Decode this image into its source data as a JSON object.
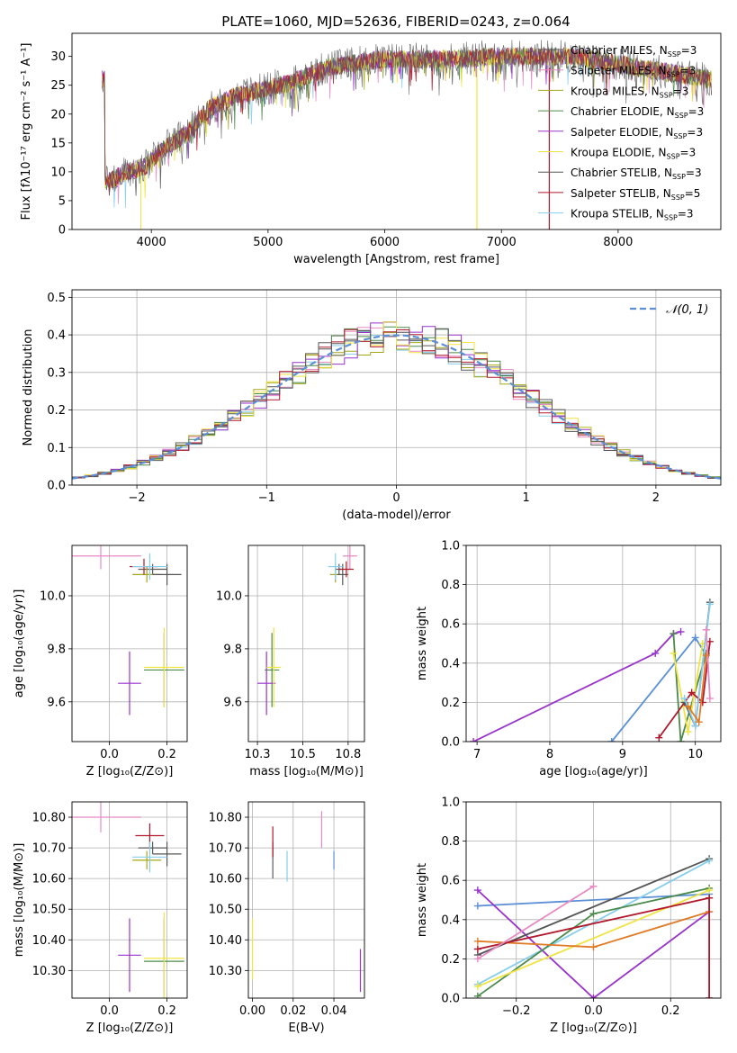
{
  "title": "PLATE=1060, MJD=52636, FIBERID=0243, z=0.064",
  "models": [
    {
      "label": "Chabrier MILES, N",
      "sub": "SSP",
      "tail": "=3",
      "color": "#5b5b5b"
    },
    {
      "label": "Salpeter MILES, N",
      "sub": "SSP",
      "tail": "=3",
      "color": "#e78ac3"
    },
    {
      "label": "Kroupa MILES, N",
      "sub": "SSP",
      "tail": "=3",
      "color": "#a6a61a"
    },
    {
      "label": "Chabrier ELODIE, N",
      "sub": "SSP",
      "tail": "=3",
      "color": "#4c8a4c"
    },
    {
      "label": "Salpeter ELODIE, N",
      "sub": "SSP",
      "tail": "=3",
      "color": "#9932cc"
    },
    {
      "label": "Kroupa ELODIE, N",
      "sub": "SSP",
      "tail": "=3",
      "color": "#f0e442"
    },
    {
      "label": "Chabrier STELIB, N",
      "sub": "SSP",
      "tail": "=3",
      "color": "#555555"
    },
    {
      "label": "Salpeter STELIB, N",
      "sub": "SSP",
      "tail": "=5",
      "color": "#b2182b"
    },
    {
      "label": "Kroupa STELIB, N",
      "sub": "SSP",
      "tail": "=3",
      "color": "#87ceeb"
    }
  ],
  "chart_data": [
    {
      "type": "line",
      "id": "spectrum",
      "xlabel": "wavelength [Angstrom, rest frame]",
      "ylabel": "Flux [fλ10⁻¹⁷ erg cm⁻² s⁻¹ A⁻¹]",
      "xlim": [
        3320,
        8880
      ],
      "ylim": [
        0,
        34
      ],
      "xticks": [
        4000,
        5000,
        6000,
        7000,
        8000
      ],
      "yticks": [
        0,
        5,
        10,
        15,
        20,
        25,
        30
      ],
      "continuum": {
        "x": [
          3600,
          3800,
          3950,
          4100,
          4300,
          4500,
          4700,
          5000,
          5200,
          5500,
          5800,
          6000,
          6300,
          6600,
          7000,
          7300,
          7600,
          7900,
          8200,
          8500,
          8800
        ],
        "y": [
          8,
          10,
          11,
          14,
          16.5,
          21,
          23,
          24.5,
          25.5,
          28,
          29,
          29.5,
          29.5,
          29.5,
          30,
          30,
          30,
          29,
          28,
          27,
          26
        ]
      },
      "drop_lines": [
        {
          "x": 6790,
          "model": 5
        },
        {
          "x": 7410,
          "model": 7
        }
      ]
    },
    {
      "type": "histogram",
      "id": "residuals",
      "xlabel": "(data-model)/error",
      "ylabel": "Normed distribution",
      "xlim": [
        -2.5,
        2.5
      ],
      "ylim": [
        0,
        0.52
      ],
      "xticks": [
        -2,
        -1,
        0,
        1,
        2
      ],
      "yticks": [
        0.0,
        0.1,
        0.2,
        0.3,
        0.4,
        0.5
      ],
      "reference": {
        "name": "𝒩(0, 1)",
        "color": "#5b8fd6"
      },
      "bin_width": 0.1
    },
    {
      "type": "errorbar",
      "id": "z-age",
      "xlabel": "Z [log₁₀(Z/Z⊙)]",
      "ylabel": "age  [log₁₀(age/yr)]",
      "xlim": [
        -0.13,
        0.27
      ],
      "ylim": [
        9.45,
        10.19
      ],
      "xticks": [
        0.0,
        0.2
      ],
      "yticks": [
        9.6,
        9.8,
        10.0
      ],
      "points": [
        {
          "m": 0,
          "x": 0.15,
          "y": 10.1,
          "xe": 0.05,
          "ye": 0.02
        },
        {
          "m": 1,
          "x": -0.03,
          "y": 10.15,
          "xe": 0.14,
          "ye": 0.05
        },
        {
          "m": 2,
          "x": 0.13,
          "y": 10.08,
          "xe": 0.05,
          "ye": 0.03
        },
        {
          "m": 3,
          "x": 0.19,
          "y": 9.72,
          "xe": 0.07,
          "ye": 0.14
        },
        {
          "m": 4,
          "x": 0.07,
          "y": 9.67,
          "xe": 0.04,
          "ye": 0.12
        },
        {
          "m": 5,
          "x": 0.19,
          "y": 9.73,
          "xe": 0.07,
          "ye": 0.15
        },
        {
          "m": 6,
          "x": 0.2,
          "y": 10.08,
          "xe": 0.05,
          "ye": 0.04
        },
        {
          "m": 7,
          "x": 0.12,
          "y": 10.11,
          "xe": 0.05,
          "ye": 0.03
        },
        {
          "m": 8,
          "x": 0.14,
          "y": 10.11,
          "xe": 0.06,
          "ye": 0.05
        }
      ]
    },
    {
      "type": "errorbar",
      "id": "mass-age",
      "xlabel": "mass [log₁₀(M/M⊙)]",
      "ylabel": "",
      "xlim": [
        10.2,
        10.84
      ],
      "ylim": [
        9.45,
        10.19
      ],
      "xticks": [
        10.25,
        10.5,
        10.75
      ],
      "yticks": [
        9.6,
        9.8,
        10.0
      ],
      "points": [
        {
          "m": 0,
          "x": 10.7,
          "y": 10.1,
          "xe": 0.02,
          "ye": 0.02
        },
        {
          "m": 1,
          "x": 10.76,
          "y": 10.15,
          "xe": 0.04,
          "ye": 0.05
        },
        {
          "m": 2,
          "x": 10.68,
          "y": 10.08,
          "xe": 0.03,
          "ye": 0.03
        },
        {
          "m": 3,
          "x": 10.33,
          "y": 9.72,
          "xe": 0.04,
          "ye": 0.14
        },
        {
          "m": 4,
          "x": 10.3,
          "y": 9.67,
          "xe": 0.05,
          "ye": 0.12
        },
        {
          "m": 5,
          "x": 10.34,
          "y": 9.73,
          "xe": 0.04,
          "ye": 0.15
        },
        {
          "m": 6,
          "x": 10.72,
          "y": 10.08,
          "xe": 0.03,
          "ye": 0.04
        },
        {
          "m": 7,
          "x": 10.74,
          "y": 10.1,
          "xe": 0.04,
          "ye": 0.03
        },
        {
          "m": 8,
          "x": 10.68,
          "y": 10.11,
          "xe": 0.04,
          "ye": 0.05
        }
      ]
    },
    {
      "type": "line",
      "id": "age-weight",
      "xlabel": "age  [log₁₀(age/yr)]",
      "ylabel": "mass weight",
      "xlim": [
        6.85,
        10.35
      ],
      "ylim": [
        0,
        1.0
      ],
      "xticks": [
        7,
        8,
        9,
        10
      ],
      "yticks": [
        0.0,
        0.2,
        0.4,
        0.6,
        0.8,
        1.0
      ],
      "series": [
        {
          "m": 9,
          "x": [
            8.85,
            10.0,
            10.15
          ],
          "y": [
            0.0,
            0.53,
            0.44
          ]
        },
        {
          "m": 4,
          "x": [
            6.95,
            9.45,
            9.7,
            9.8
          ],
          "y": [
            0.0,
            0.45,
            0.55,
            0.56
          ]
        },
        {
          "m": 3,
          "x": [
            9.7,
            9.8,
            10.15
          ],
          "y": [
            0.55,
            0.0,
            0.45
          ]
        },
        {
          "m": 5,
          "x": [
            9.7,
            9.9,
            10.1
          ],
          "y": [
            0.45,
            0.05,
            0.5
          ]
        },
        {
          "m": 7,
          "x": [
            9.5,
            9.95,
            10.1,
            10.2
          ],
          "y": [
            0.02,
            0.25,
            0.2,
            0.51
          ]
        },
        {
          "m": 6,
          "x": [
            9.85,
            10.0,
            10.2
          ],
          "y": [
            0.2,
            0.08,
            0.71
          ]
        },
        {
          "m": 8,
          "x": [
            9.85,
            10.0,
            10.2
          ],
          "y": [
            0.22,
            0.08,
            0.7
          ]
        },
        {
          "m": 1,
          "x": [
            10.15,
            10.2
          ],
          "y": [
            0.57,
            0.22
          ]
        },
        {
          "m": 10,
          "x": [
            9.9,
            10.05,
            10.15
          ],
          "y": [
            0.18,
            0.1,
            0.44
          ]
        }
      ]
    },
    {
      "type": "errorbar",
      "id": "z-mass",
      "xlabel": "Z [log₁₀(Z/Z⊙)]",
      "ylabel": "mass [log₁₀(M/M⊙)]",
      "xlim": [
        -0.13,
        0.27
      ],
      "ylim": [
        10.21,
        10.85
      ],
      "xticks": [
        0.0,
        0.2
      ],
      "yticks": [
        10.3,
        10.4,
        10.5,
        10.6,
        10.7,
        10.8
      ],
      "points": [
        {
          "m": 0,
          "x": 0.15,
          "y": 10.7,
          "xe": 0.05,
          "ye": 0.02
        },
        {
          "m": 1,
          "x": -0.03,
          "y": 10.8,
          "xe": 0.14,
          "ye": 0.05
        },
        {
          "m": 2,
          "x": 0.13,
          "y": 10.66,
          "xe": 0.05,
          "ye": 0.03
        },
        {
          "m": 3,
          "x": 0.19,
          "y": 10.33,
          "xe": 0.07,
          "ye": 0.14
        },
        {
          "m": 4,
          "x": 0.07,
          "y": 10.35,
          "xe": 0.04,
          "ye": 0.12
        },
        {
          "m": 5,
          "x": 0.19,
          "y": 10.34,
          "xe": 0.07,
          "ye": 0.15
        },
        {
          "m": 6,
          "x": 0.2,
          "y": 10.68,
          "xe": 0.05,
          "ye": 0.04
        },
        {
          "m": 7,
          "x": 0.14,
          "y": 10.74,
          "xe": 0.05,
          "ye": 0.04
        },
        {
          "m": 8,
          "x": 0.14,
          "y": 10.67,
          "xe": 0.06,
          "ye": 0.05
        }
      ]
    },
    {
      "type": "errorbar",
      "id": "ebv-mass",
      "xlabel": "E(B-V)",
      "ylabel": "",
      "xlim": [
        -0.002,
        0.055
      ],
      "ylim": [
        10.21,
        10.85
      ],
      "xticks": [
        0.0,
        0.02,
        0.04
      ],
      "yticks": [
        10.3,
        10.4,
        10.5,
        10.6,
        10.7,
        10.8
      ],
      "points": [
        {
          "m": 0,
          "x": 0.01,
          "y": 10.66,
          "xe": 0,
          "ye": 0.06
        },
        {
          "m": 1,
          "x": 0.034,
          "y": 10.76,
          "xe": 0,
          "ye": 0.06
        },
        {
          "m": 7,
          "x": 0.01,
          "y": 10.72,
          "xe": 0,
          "ye": 0.05
        },
        {
          "m": 8,
          "x": 0.017,
          "y": 10.64,
          "xe": 0,
          "ye": 0.05
        },
        {
          "m": 9,
          "x": 0.04,
          "y": 10.66,
          "xe": 0,
          "ye": 0.03
        },
        {
          "m": 5,
          "x": 0.0,
          "y": 10.37,
          "xe": 0,
          "ye": 0.1
        },
        {
          "m": 4,
          "x": 0.053,
          "y": 10.3,
          "xe": 0,
          "ye": 0.07
        }
      ]
    },
    {
      "type": "line",
      "id": "z-weight",
      "xlabel": "Z [log₁₀(Z/Z⊙)]",
      "ylabel": "mass weight",
      "xlim": [
        -0.33,
        0.33
      ],
      "ylim": [
        0,
        1.0
      ],
      "xticks": [
        -0.2,
        0.0,
        0.2
      ],
      "yticks": [
        0.0,
        0.2,
        0.4,
        0.6,
        0.8,
        1.0
      ],
      "series": [
        {
          "m": 9,
          "x": [
            -0.3,
            0.3
          ],
          "y": [
            0.47,
            0.53
          ]
        },
        {
          "m": 4,
          "x": [
            -0.3,
            0.0,
            0.3
          ],
          "y": [
            0.55,
            0.0,
            0.44
          ]
        },
        {
          "m": 6,
          "x": [
            -0.3,
            0.3
          ],
          "y": [
            0.22,
            0.71
          ]
        },
        {
          "m": 8,
          "x": [
            -0.3,
            0.3
          ],
          "y": [
            0.07,
            0.7
          ]
        },
        {
          "m": 3,
          "x": [
            -0.3,
            0.0,
            0.3
          ],
          "y": [
            0.01,
            0.43,
            0.56
          ]
        },
        {
          "m": 5,
          "x": [
            -0.3,
            0.3
          ],
          "y": [
            0.06,
            0.55
          ]
        },
        {
          "m": 10,
          "x": [
            -0.3,
            0.0,
            0.3
          ],
          "y": [
            0.29,
            0.26,
            0.44
          ]
        },
        {
          "m": 7,
          "x": [
            -0.3,
            0.3
          ],
          "y": [
            0.25,
            0.51
          ]
        },
        {
          "m": 1,
          "x": [
            -0.3,
            0.0
          ],
          "y": [
            0.2,
            0.57
          ]
        },
        {
          "m": 7,
          "x": [
            0.3,
            0.3
          ],
          "y": [
            0.51,
            0.0
          ]
        }
      ]
    }
  ],
  "extra_colors": [
    "#5b8fd6",
    "#e07b28"
  ]
}
